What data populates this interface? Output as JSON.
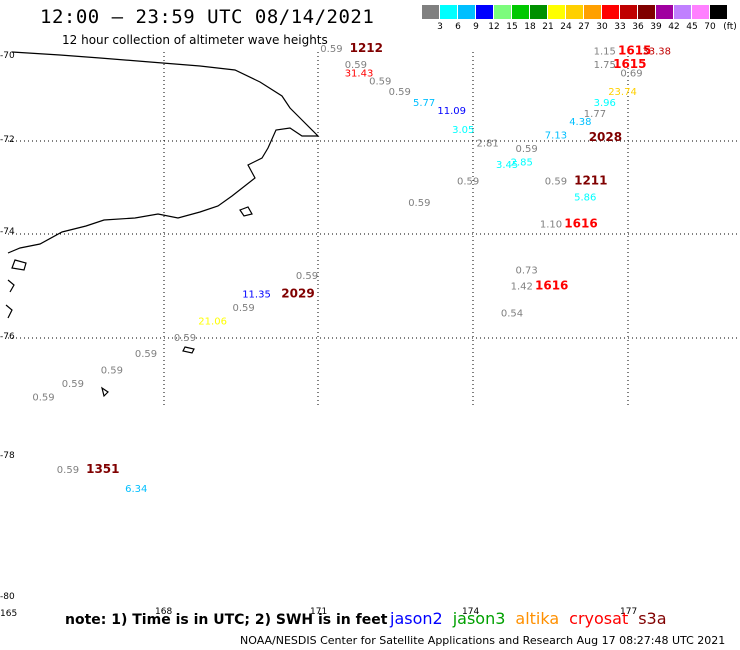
{
  "header": {
    "title": "12:00 — 23:59 UTC 08/14/2021",
    "subtitle": "12 hour collection of altimeter wave heights"
  },
  "legend": {
    "ticks": [
      "3",
      "6",
      "9",
      "12",
      "15",
      "18",
      "21",
      "24",
      "27",
      "30",
      "33",
      "36",
      "39",
      "42",
      "45",
      "70"
    ],
    "unit": "(ft)",
    "colors": [
      "#808080",
      "#00ffff",
      "#00bfff",
      "#0000ff",
      "#7cfc7c",
      "#00c800",
      "#009000",
      "#ffff00",
      "#ffd000",
      "#ffa000",
      "#ff0000",
      "#c00000",
      "#800000",
      "#a000a0",
      "#c080ff",
      "#ff80ff",
      "#000000"
    ]
  },
  "chart_data": {
    "type": "scatter",
    "title": "12 hour collection of altimeter wave heights",
    "xlim": [
      165,
      180
    ],
    "ylim": [
      -80,
      -70
    ],
    "lat_ticks": [
      "-70",
      "-72",
      "-74",
      "-76",
      "-78",
      "-80"
    ],
    "lon_ticks": [
      "165",
      "168",
      "171",
      "174",
      "177"
    ],
    "grid": true,
    "swh_labels": [
      {
        "lon": 171.4,
        "lat": -70.0,
        "text": "0.59",
        "color": "#808080"
      },
      {
        "lon": 172.0,
        "lat": -70.0,
        "text": "1212",
        "color": "#800000",
        "bold": true
      },
      {
        "lon": 171.9,
        "lat": -70.3,
        "text": "0.59",
        "color": "#808080"
      },
      {
        "lon": 171.9,
        "lat": -70.45,
        "text": "31.43",
        "color": "#ff0000"
      },
      {
        "lon": 172.4,
        "lat": -70.6,
        "text": "0.59",
        "color": "#808080"
      },
      {
        "lon": 172.8,
        "lat": -70.8,
        "text": "0.59",
        "color": "#808080"
      },
      {
        "lon": 173.3,
        "lat": -71.0,
        "text": "5.77",
        "color": "#00bfff"
      },
      {
        "lon": 173.8,
        "lat": -71.15,
        "text": "11.09",
        "color": "#0000ff"
      },
      {
        "lon": 174.1,
        "lat": -71.5,
        "text": "3.05",
        "color": "#00ffff"
      },
      {
        "lon": 174.6,
        "lat": -71.75,
        "text": "2.81",
        "color": "#808080"
      },
      {
        "lon": 175.4,
        "lat": -71.85,
        "text": "0.59",
        "color": "#808080"
      },
      {
        "lon": 175.0,
        "lat": -72.15,
        "text": "3.45",
        "color": "#00ffff"
      },
      {
        "lon": 175.3,
        "lat": -72.1,
        "text": "2.85",
        "color": "#00ffff"
      },
      {
        "lon": 174.2,
        "lat": -72.45,
        "text": "0.59",
        "color": "#808080"
      },
      {
        "lon": 173.2,
        "lat": -72.85,
        "text": "0.59",
        "color": "#808080"
      },
      {
        "lon": 176.0,
        "lat": -71.6,
        "text": "7.13",
        "color": "#00bfff"
      },
      {
        "lon": 176.5,
        "lat": -71.35,
        "text": "4.38",
        "color": "#00bfff"
      },
      {
        "lon": 176.8,
        "lat": -71.2,
        "text": "1.77",
        "color": "#808080"
      },
      {
        "lon": 177.0,
        "lat": -71.0,
        "text": "3.96",
        "color": "#00ffff"
      },
      {
        "lon": 177.3,
        "lat": -70.8,
        "text": "23.74",
        "color": "#ffd000"
      },
      {
        "lon": 176.9,
        "lat": -71.65,
        "text": "2028",
        "color": "#800000",
        "bold": true
      },
      {
        "lon": 176.0,
        "lat": -72.45,
        "text": "0.59",
        "color": "#808080"
      },
      {
        "lon": 176.6,
        "lat": -72.45,
        "text": "1211",
        "color": "#800000",
        "bold": true
      },
      {
        "lon": 176.6,
        "lat": -72.75,
        "text": "5.86",
        "color": "#00ffff"
      },
      {
        "lon": 175.9,
        "lat": -73.25,
        "text": "1.10",
        "color": "#808080"
      },
      {
        "lon": 176.4,
        "lat": -73.25,
        "text": "1616",
        "color": "#ff0000",
        "bold": true
      },
      {
        "lon": 175.4,
        "lat": -74.1,
        "text": "0.73",
        "color": "#808080"
      },
      {
        "lon": 175.3,
        "lat": -74.4,
        "text": "1.42",
        "color": "#808080"
      },
      {
        "lon": 175.8,
        "lat": -74.4,
        "text": "1616",
        "color": "#ff0000",
        "bold": true
      },
      {
        "lon": 175.1,
        "lat": -74.9,
        "text": "0.54",
        "color": "#808080"
      },
      {
        "lon": 177.0,
        "lat": -70.05,
        "text": "1.15",
        "color": "#808080"
      },
      {
        "lon": 177.5,
        "lat": -70.05,
        "text": "1615",
        "color": "#ff0000",
        "bold": true
      },
      {
        "lon": 178.0,
        "lat": -70.05,
        "text": "33.38",
        "color": "#c00000"
      },
      {
        "lon": 177.0,
        "lat": -70.3,
        "text": "1.75",
        "color": "#808080"
      },
      {
        "lon": 177.4,
        "lat": -70.3,
        "text": "1615",
        "color": "#ff0000",
        "bold": true
      },
      {
        "lon": 177.55,
        "lat": -70.45,
        "text": "0.69",
        "color": "#808080"
      },
      {
        "lon": 170.9,
        "lat": -74.2,
        "text": "0.59",
        "color": "#808080"
      },
      {
        "lon": 169.8,
        "lat": -74.55,
        "text": "11.35",
        "color": "#0000ff"
      },
      {
        "lon": 170.6,
        "lat": -74.55,
        "text": "2029",
        "color": "#800000",
        "bold": true
      },
      {
        "lon": 169.6,
        "lat": -74.8,
        "text": "0.59",
        "color": "#808080"
      },
      {
        "lon": 168.9,
        "lat": -75.05,
        "text": "21.06",
        "color": "#ffff00"
      },
      {
        "lon": 168.4,
        "lat": -75.35,
        "text": "0.59",
        "color": "#808080"
      },
      {
        "lon": 167.6,
        "lat": -75.65,
        "text": "0.59",
        "color": "#808080"
      },
      {
        "lon": 166.9,
        "lat": -75.95,
        "text": "0.59",
        "color": "#808080"
      },
      {
        "lon": 166.1,
        "lat": -76.2,
        "text": "0.59",
        "color": "#808080"
      },
      {
        "lon": 165.5,
        "lat": -76.45,
        "text": "0.59",
        "color": "#808080"
      },
      {
        "lon": 166.0,
        "lat": -77.8,
        "text": "0.59",
        "color": "#808080"
      },
      {
        "lon": 166.6,
        "lat": -77.8,
        "text": "1351",
        "color": "#800000",
        "bold": true
      },
      {
        "lon": 167.4,
        "lat": -78.15,
        "text": "6.34",
        "color": "#00bfff"
      }
    ]
  },
  "footer": {
    "note": "note: 1) Time is in UTC; 2) SWH is in feet",
    "satellites": [
      {
        "name": "jason2",
        "color": "#0000ff"
      },
      {
        "name": "jason3",
        "color": "#00a000"
      },
      {
        "name": "altika",
        "color": "#ff9000"
      },
      {
        "name": "cryosat",
        "color": "#ff0000"
      },
      {
        "name": "s3a",
        "color": "#800000"
      }
    ],
    "credit": "NOAA/NESDIS Center for Satellite Applications and Research   Aug 17 08:27:48 UTC 2021"
  }
}
